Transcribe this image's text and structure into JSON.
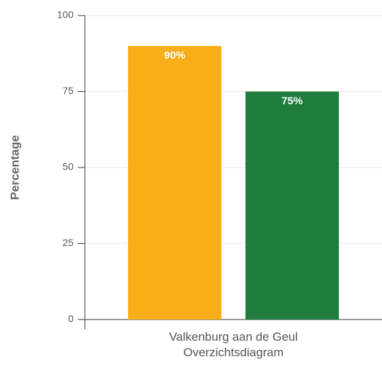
{
  "chart_data": {
    "type": "bar",
    "categories": [
      "Valkenburg aan de Geul Overzichtsdiagram"
    ],
    "series": [
      {
        "color": "#f9ad18",
        "values": [
          90
        ],
        "value_labels": [
          "90%"
        ]
      },
      {
        "color": "#1e7d3c",
        "values": [
          75
        ],
        "value_labels": [
          "75%"
        ]
      }
    ],
    "y_label": "Percentage",
    "ylim": [
      0,
      100
    ],
    "yticks": [
      0,
      25,
      50,
      75,
      100
    ],
    "grid": true
  }
}
